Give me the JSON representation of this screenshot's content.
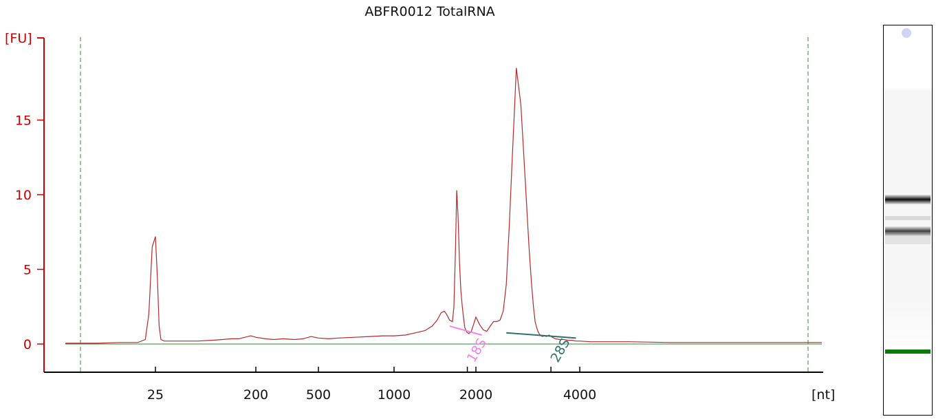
{
  "chart_data": {
    "type": "line",
    "title": "ABFR0012 TotalRNA",
    "ylabel": "[FU]",
    "xlabel": "[nt]",
    "x_scale": "size-ladder (nt)",
    "x_ticks": [
      "25",
      "200",
      "500",
      "1000",
      "2000",
      "4000"
    ],
    "y_ticks": [
      "0",
      "5",
      "10",
      "15"
    ],
    "ylim": [
      -1.8,
      20.5
    ],
    "grid": false,
    "series": [
      {
        "x": [
          8,
          12,
          16,
          20,
          22,
          23,
          24,
          25,
          26,
          27,
          28,
          30,
          35,
          40,
          50,
          60,
          80,
          100,
          120,
          140,
          160,
          180,
          200,
          230,
          260,
          300,
          350,
          400,
          450,
          500,
          550,
          600,
          700,
          800,
          900,
          1000,
          1100,
          1200,
          1300,
          1380,
          1440,
          1490,
          1530,
          1560,
          1600,
          1640,
          1660,
          1680,
          1700,
          1720,
          1740,
          1760,
          1780,
          1800,
          1820,
          1850,
          1880,
          1920,
          1960,
          2000,
          2050,
          2100,
          2150,
          2200,
          2250,
          2300,
          2350,
          2400,
          2450,
          2500,
          2550,
          2620,
          2700,
          2780,
          2850,
          2900,
          2940,
          2970,
          3000,
          3030,
          3060,
          3090,
          3120,
          3150,
          3200,
          3260,
          3330,
          3400,
          3500,
          3600,
          3700,
          3800,
          3900,
          4000,
          4200,
          4500,
          5000,
          6000,
          7000,
          8000,
          9000,
          10000,
          11000,
          12000
        ],
        "y": [
          0.05,
          0.05,
          0.1,
          0.1,
          0.3,
          2.0,
          6.5,
          7.2,
          4.5,
          1.2,
          0.3,
          0.2,
          0.2,
          0.2,
          0.2,
          0.2,
          0.25,
          0.3,
          0.35,
          0.35,
          0.45,
          0.55,
          0.45,
          0.35,
          0.3,
          0.35,
          0.3,
          0.35,
          0.5,
          0.4,
          0.35,
          0.4,
          0.45,
          0.5,
          0.55,
          0.55,
          0.6,
          0.75,
          0.9,
          1.2,
          1.6,
          2.1,
          2.2,
          2.0,
          1.6,
          1.5,
          2.5,
          6.0,
          10.3,
          8.5,
          5.5,
          3.6,
          2.6,
          1.8,
          1.1,
          0.8,
          0.7,
          0.8,
          1.3,
          1.8,
          1.3,
          0.95,
          0.85,
          1.2,
          1.5,
          1.5,
          1.6,
          2.2,
          4.0,
          8.0,
          12.5,
          18.5,
          16.0,
          11.0,
          6.5,
          4.0,
          2.4,
          1.5,
          1.1,
          0.8,
          0.65,
          0.55,
          0.5,
          0.55,
          0.5,
          0.6,
          0.45,
          0.35,
          0.3,
          0.3,
          0.25,
          0.25,
          0.2,
          0.2,
          0.15,
          0.15,
          0.15,
          0.1,
          0.1,
          0.1,
          0.1,
          0.1,
          0.1,
          0.1
        ],
        "color": "#b22a2a"
      }
    ],
    "peak_markers": [
      {
        "label": "18S",
        "x": 1860,
        "color": "#ee82ee",
        "baseline": {
          "x": [
            1600,
            2080
          ],
          "y": [
            1.2,
            0.6
          ]
        }
      },
      {
        "label": "28S",
        "x": 3300,
        "color": "#2f6f6f",
        "baseline": {
          "x": [
            2450,
            3900
          ],
          "y": [
            0.75,
            0.4
          ]
        }
      }
    ],
    "baseline_color": "#2e8b2e",
    "axis_color": "#cc0000",
    "window_line_color": "#2e8b2e"
  },
  "gel": {
    "marker_color": "#0a7a0a",
    "marker_dot_color": "#cfd4f5",
    "bands": [
      {
        "label": "28S",
        "intensity": 0.95
      },
      {
        "label": "18S",
        "intensity": 0.8
      }
    ]
  }
}
